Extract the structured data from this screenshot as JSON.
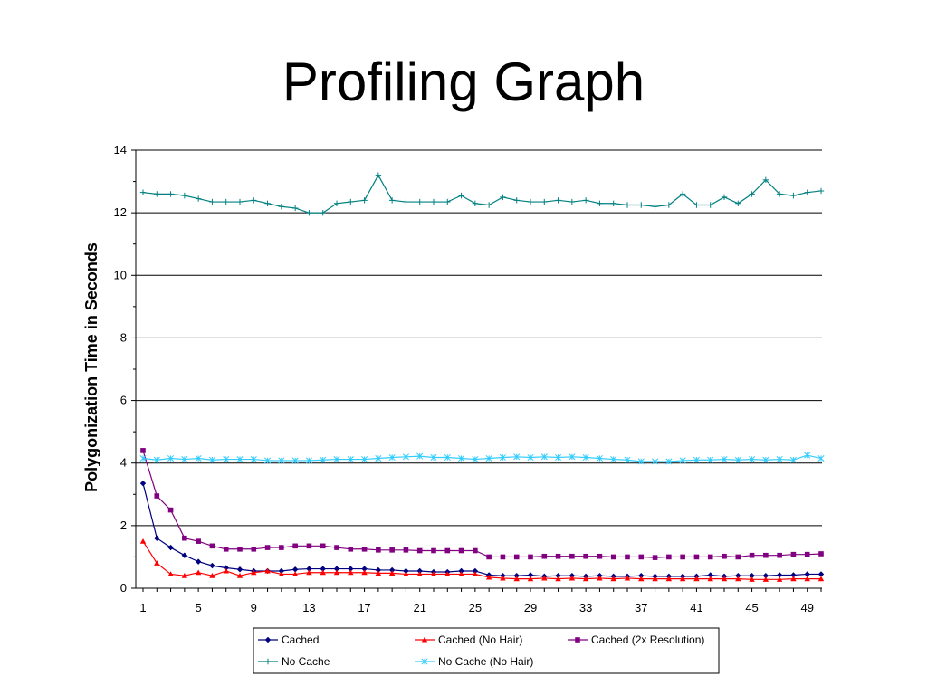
{
  "slide": {
    "title": "Profiling Graph"
  },
  "chart_data": {
    "type": "line",
    "title": "",
    "xlabel": "",
    "ylabel": "Polygonization Time in Seconds",
    "ylim": [
      0,
      14
    ],
    "yticks": [
      0,
      2,
      4,
      6,
      8,
      10,
      12,
      14
    ],
    "xlim": [
      1,
      50
    ],
    "xtick_labels": [
      1,
      5,
      9,
      13,
      17,
      21,
      25,
      29,
      33,
      37,
      41,
      45,
      49
    ],
    "grid": "horizontal major",
    "legend_position": "bottom",
    "x": [
      1,
      2,
      3,
      4,
      5,
      6,
      7,
      8,
      9,
      10,
      11,
      12,
      13,
      14,
      15,
      16,
      17,
      18,
      19,
      20,
      21,
      22,
      23,
      24,
      25,
      26,
      27,
      28,
      29,
      30,
      31,
      32,
      33,
      34,
      35,
      36,
      37,
      38,
      39,
      40,
      41,
      42,
      43,
      44,
      45,
      46,
      47,
      48,
      49,
      50
    ],
    "series": [
      {
        "name": "Cached",
        "color": "#000080",
        "marker": "diamond",
        "values": [
          3.35,
          1.6,
          1.3,
          1.05,
          0.85,
          0.72,
          0.65,
          0.6,
          0.55,
          0.55,
          0.55,
          0.6,
          0.62,
          0.62,
          0.62,
          0.62,
          0.62,
          0.58,
          0.58,
          0.55,
          0.55,
          0.52,
          0.52,
          0.55,
          0.55,
          0.42,
          0.4,
          0.4,
          0.42,
          0.38,
          0.4,
          0.4,
          0.38,
          0.4,
          0.38,
          0.38,
          0.4,
          0.38,
          0.38,
          0.38,
          0.38,
          0.42,
          0.38,
          0.4,
          0.4,
          0.4,
          0.42,
          0.42,
          0.45,
          0.45
        ]
      },
      {
        "name": "Cached (No Hair)",
        "color": "#ff0000",
        "marker": "triangle",
        "values": [
          1.5,
          0.8,
          0.45,
          0.4,
          0.5,
          0.4,
          0.55,
          0.4,
          0.5,
          0.55,
          0.45,
          0.45,
          0.5,
          0.5,
          0.5,
          0.5,
          0.5,
          0.48,
          0.48,
          0.45,
          0.45,
          0.45,
          0.45,
          0.45,
          0.45,
          0.35,
          0.32,
          0.3,
          0.3,
          0.32,
          0.3,
          0.32,
          0.3,
          0.32,
          0.3,
          0.32,
          0.3,
          0.3,
          0.3,
          0.3,
          0.3,
          0.3,
          0.3,
          0.3,
          0.28,
          0.28,
          0.28,
          0.3,
          0.3,
          0.3
        ]
      },
      {
        "name": "Cached (2x Resolution)",
        "color": "#800080",
        "marker": "square",
        "values": [
          4.4,
          2.95,
          2.5,
          1.6,
          1.5,
          1.35,
          1.25,
          1.25,
          1.25,
          1.3,
          1.3,
          1.35,
          1.35,
          1.35,
          1.3,
          1.25,
          1.25,
          1.22,
          1.22,
          1.22,
          1.2,
          1.2,
          1.2,
          1.2,
          1.2,
          1.0,
          1.0,
          1.0,
          1.0,
          1.02,
          1.02,
          1.02,
          1.02,
          1.02,
          1.0,
          1.0,
          1.0,
          0.98,
          1.0,
          1.0,
          1.0,
          1.0,
          1.02,
          1.0,
          1.05,
          1.05,
          1.05,
          1.08,
          1.08,
          1.1
        ]
      },
      {
        "name": "No Cache",
        "color": "#008080",
        "marker": "plus",
        "values": [
          12.65,
          12.6,
          12.6,
          12.55,
          12.45,
          12.35,
          12.35,
          12.35,
          12.4,
          12.3,
          12.2,
          12.15,
          12.0,
          12.0,
          12.3,
          12.35,
          12.4,
          13.2,
          12.4,
          12.35,
          12.35,
          12.35,
          12.35,
          12.55,
          12.3,
          12.25,
          12.5,
          12.4,
          12.35,
          12.35,
          12.4,
          12.35,
          12.4,
          12.3,
          12.3,
          12.25,
          12.25,
          12.2,
          12.25,
          12.6,
          12.25,
          12.25,
          12.5,
          12.3,
          12.6,
          13.05,
          12.6,
          12.55,
          12.65,
          12.7
        ]
      },
      {
        "name": "No Cache (No Hair)",
        "color": "#33ccff",
        "marker": "star",
        "values": [
          4.15,
          4.1,
          4.15,
          4.12,
          4.15,
          4.1,
          4.12,
          4.12,
          4.12,
          4.08,
          4.08,
          4.08,
          4.08,
          4.1,
          4.12,
          4.12,
          4.12,
          4.15,
          4.18,
          4.2,
          4.22,
          4.18,
          4.18,
          4.15,
          4.12,
          4.15,
          4.18,
          4.2,
          4.18,
          4.2,
          4.18,
          4.2,
          4.18,
          4.15,
          4.12,
          4.1,
          4.05,
          4.05,
          4.05,
          4.08,
          4.1,
          4.1,
          4.12,
          4.1,
          4.12,
          4.1,
          4.12,
          4.1,
          4.25,
          4.15
        ]
      }
    ]
  }
}
